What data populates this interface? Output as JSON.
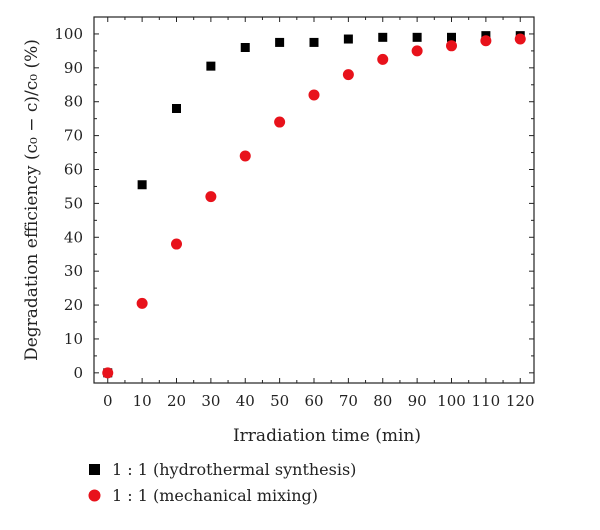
{
  "chart_data": {
    "type": "scatter",
    "xlabel": "Irradiation time (min)",
    "ylabel": "Degradation efficiency (c₀ − c)/c₀ (%)",
    "xlim": [
      -4,
      124
    ],
    "ylim": [
      -3,
      105
    ],
    "xticks": [
      0,
      10,
      20,
      30,
      40,
      50,
      60,
      70,
      80,
      90,
      100,
      110,
      120
    ],
    "yticks": [
      0,
      10,
      20,
      30,
      40,
      50,
      60,
      70,
      80,
      90,
      100
    ],
    "grid": false,
    "legend_position": "below-left",
    "series": [
      {
        "name": "1 : 1 (hydrothermal synthesis)",
        "marker": "square",
        "color": "#000000",
        "x": [
          0,
          10,
          20,
          30,
          40,
          50,
          60,
          70,
          80,
          90,
          100,
          110,
          120
        ],
        "y": [
          0,
          55.5,
          78,
          90.5,
          96,
          97.5,
          97.5,
          98.5,
          99,
          99,
          99,
          99.5,
          99.5
        ]
      },
      {
        "name": "1 : 1 (mechanical mixing)",
        "marker": "circle",
        "color": "#e8121b",
        "x": [
          0,
          10,
          20,
          30,
          40,
          50,
          60,
          70,
          80,
          90,
          100,
          110,
          120
        ],
        "y": [
          0,
          20.5,
          38,
          52,
          64,
          74,
          82,
          88,
          92.5,
          95,
          96.5,
          98,
          98.5
        ]
      }
    ]
  }
}
